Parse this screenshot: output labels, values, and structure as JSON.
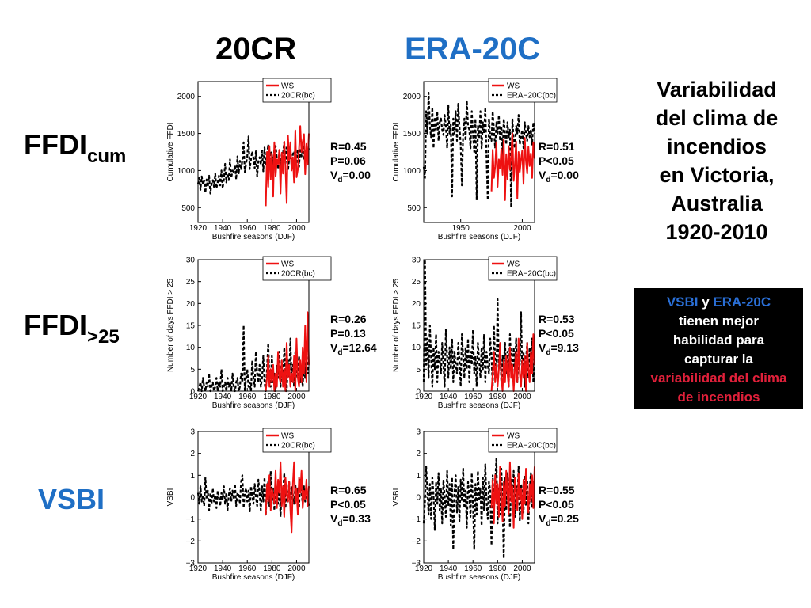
{
  "headers": {
    "col1": "20CR",
    "col1_color": "#000000",
    "col2": "ERA-20C",
    "col2_color": "#1f6fc5"
  },
  "rows": [
    {
      "main": "FFDI",
      "sub": "cum",
      "color": "#000000"
    },
    {
      "main": "FFDI",
      "sub": ">25",
      "color": "#000000"
    },
    {
      "main": "VSBI",
      "sub": "",
      "color": "#1f6fc5"
    }
  ],
  "side_title": {
    "lines": [
      "Variabilidad",
      "del clima de",
      "incendios",
      "en Victoria,",
      "Australia",
      "1920-2010"
    ]
  },
  "box": {
    "vsbi": "VSBI",
    "y": " y ",
    "era": "ERA-20C",
    "line2": "tienen mejor",
    "line3": "habilidad para",
    "line4": "capturar la",
    "red1": "variabilidad del clima",
    "red2": "de incendios"
  },
  "stats": [
    {
      "r": "R=0.45",
      "p": "P=0.06",
      "v_pre": "V",
      "v_sub": "d",
      "v_post": "=0.00"
    },
    {
      "r": "R=0.51",
      "p": "P<0.05",
      "v_pre": "V",
      "v_sub": "d",
      "v_post": "=0.00"
    },
    {
      "r": "R=0.26",
      "p": "P=0.13",
      "v_pre": "V",
      "v_sub": "d",
      "v_post": "=12.64"
    },
    {
      "r": "R=0.53",
      "p": "P<0.05",
      "v_pre": "V",
      "v_sub": "d",
      "v_post": "=9.13"
    },
    {
      "r": "R=0.65",
      "p": "P<0.05",
      "v_pre": "V",
      "v_sub": "d",
      "v_post": "=0.33"
    },
    {
      "r": "R=0.55",
      "p": "P<0.05",
      "v_pre": "V",
      "v_sub": "d",
      "v_post": "=0.25"
    }
  ],
  "colors": {
    "ws": "#ee1111",
    "reanalysis": "#000000"
  },
  "chart_data": [
    {
      "type": "line",
      "xlabel": "Bushfire seasons (DJF)",
      "ylabel": "Cumulative FFDI",
      "xlim": [
        1920,
        2010
      ],
      "ylim": [
        300,
        2200
      ],
      "xticks": [
        1920,
        1940,
        1960,
        1980,
        2000
      ],
      "yticks": [
        500,
        1000,
        1500,
        2000
      ],
      "legend": "top-right",
      "series": [
        {
          "name": "WS",
          "style": "solid",
          "x_start": 1975,
          "values": [
            520,
            1250,
            780,
            1330,
            880,
            1230,
            650,
            1380,
            920,
            1150,
            1090,
            1280,
            690,
            1240,
            960,
            1390,
            1050,
            560,
            1470,
            1130,
            1380,
            1000,
            1180,
            840,
            1540,
            910,
            1010,
            1300,
            1600,
            1250,
            1390,
            1490,
            950,
            1360,
            1080,
            1500
          ]
        },
        {
          "name": "20CR(bc)",
          "style": "dashed",
          "x_start": 1920,
          "values": [
            820,
            900,
            740,
            920,
            810,
            860,
            700,
            880,
            780,
            930,
            690,
            820,
            870,
            780,
            960,
            760,
            840,
            930,
            800,
            1000,
            760,
            880,
            1090,
            840,
            960,
            870,
            1150,
            900,
            1000,
            980,
            1070,
            880,
            1190,
            950,
            1130,
            1010,
            1140,
            1380,
            980,
            1090,
            1190,
            1460,
            1020,
            1150,
            1260,
            1170,
            1030,
            1260,
            920,
            1120,
            1180,
            1080,
            1270,
            990,
            1310,
            1060,
            1200,
            1350,
            1100,
            1260,
            1210,
            1040,
            1300,
            1330,
            1160,
            1020,
            1270,
            1060,
            1150,
            1230,
            1380,
            1100,
            1310,
            1000,
            1150,
            1280,
            1060,
            1220,
            1260,
            1170,
            1110,
            1290,
            1050,
            1300,
            1190,
            1350,
            1140,
            1280,
            1130,
            1240,
            1300
          ]
        }
      ]
    },
    {
      "type": "line",
      "xlabel": "Bushfire seasons (DJF)",
      "ylabel": "Cumulative FFDI",
      "xlim": [
        1920,
        2010
      ],
      "ylim": [
        300,
        2200
      ],
      "xticks": [
        1950,
        2000
      ],
      "yticks": [
        500,
        1000,
        1500,
        2000
      ],
      "legend": "top-right",
      "series": [
        {
          "name": "WS",
          "style": "solid",
          "x_start": 1975,
          "values": [
            720,
            1280,
            900,
            1050,
            1380,
            780,
            1150,
            1030,
            1290,
            940,
            1420,
            600,
            1220,
            880,
            1330,
            1010,
            1200,
            1500,
            860,
            1080,
            1390,
            620,
            1250,
            980,
            1150,
            1270,
            820,
            1440,
            1130,
            960,
            1320,
            1060,
            1230,
            900,
            1380,
            1160
          ]
        },
        {
          "name": "ERA−20C(bc)",
          "style": "dashed",
          "x_start": 1920,
          "values": [
            1050,
            900,
            1800,
            1500,
            2050,
            1600,
            1450,
            1850,
            1300,
            1720,
            1550,
            1800,
            1400,
            1650,
            1700,
            1550,
            1480,
            1750,
            1600,
            1300,
            1880,
            1500,
            1620,
            650,
            1700,
            1500,
            1800,
            1400,
            1900,
            1600,
            1350,
            800,
            1500,
            1700,
            1400,
            1950,
            1600,
            1550,
            1300,
            1800,
            1500,
            1250,
            1700,
            600,
            1600,
            1450,
            1800,
            1300,
            1650,
            1500,
            1850,
            1200,
            600,
            1700,
            1450,
            1400,
            1800,
            1550,
            1300,
            1650,
            1500,
            1750,
            1400,
            1600,
            1200,
            1700,
            1500,
            1350,
            1650,
            1450,
            1550,
            500,
            1700,
            1400,
            1300,
            1600,
            1500,
            1750,
            1350,
            1450,
            1550,
            1300,
            1650,
            1500,
            1400,
            1600,
            1450,
            1550,
            1350,
            1650,
            1500
          ]
        }
      ]
    },
    {
      "type": "line",
      "xlabel": "Bushfire seasons (DJF)",
      "ylabel": "Number of days FFDI > 25",
      "xlim": [
        1920,
        2010
      ],
      "ylim": [
        0,
        30
      ],
      "xticks": [
        1920,
        1940,
        1960,
        1980,
        2000
      ],
      "yticks": [
        0,
        5,
        10,
        15,
        20,
        25,
        30
      ],
      "legend": "top-right",
      "series": [
        {
          "name": "WS",
          "style": "solid",
          "x_start": 1975,
          "values": [
            0,
            3,
            8,
            1,
            5,
            2,
            6,
            0,
            4,
            1,
            9,
            3,
            2,
            7,
            1,
            5,
            0,
            11,
            3,
            6,
            1,
            4,
            2,
            8,
            0,
            12,
            3,
            1,
            7,
            2,
            10,
            4,
            15,
            2,
            18,
            6
          ]
        },
        {
          "name": "20CR(bc)",
          "style": "dashed",
          "x_start": 1920,
          "values": [
            0,
            1,
            2,
            0,
            3,
            1,
            0,
            2,
            1,
            4,
            0,
            1,
            2,
            0,
            1,
            3,
            0,
            2,
            1,
            5,
            0,
            1,
            2,
            0,
            3,
            1,
            2,
            0,
            4,
            1,
            0,
            2,
            3,
            0,
            1,
            4,
            2,
            15,
            0,
            3,
            5,
            1,
            2,
            0,
            7,
            3,
            1,
            9,
            4,
            2,
            6,
            1,
            3,
            8,
            2,
            0,
            5,
            11,
            3,
            1,
            8,
            2,
            4,
            0,
            6,
            3,
            9,
            1,
            5,
            2,
            10,
            4,
            0,
            7,
            3,
            12,
            2,
            6,
            1,
            9,
            4,
            3,
            8,
            2,
            5,
            1,
            7,
            3,
            11,
            4,
            6
          ]
        }
      ]
    },
    {
      "type": "line",
      "xlabel": "Bushfire seasons (DJF)",
      "ylabel": "Number of days FFDI > 25",
      "xlim": [
        1920,
        2010
      ],
      "ylim": [
        0,
        30
      ],
      "xticks": [
        1920,
        1940,
        1960,
        1980,
        2000
      ],
      "yticks": [
        0,
        5,
        10,
        15,
        20,
        25,
        30
      ],
      "legend": "top-right",
      "series": [
        {
          "name": "WS",
          "style": "solid",
          "x_start": 1975,
          "values": [
            0,
            4,
            9,
            2,
            6,
            1,
            5,
            11,
            3,
            0,
            7,
            2,
            8,
            4,
            1,
            10,
            3,
            6,
            0,
            5,
            9,
            2,
            12,
            4,
            1,
            7,
            3,
            8,
            0,
            11,
            5,
            2,
            9,
            4,
            13,
            6
          ]
        },
        {
          "name": "ERA−20C(bc)",
          "style": "dashed",
          "x_start": 1920,
          "values": [
            2,
            30,
            6,
            12,
            3,
            15,
            8,
            1,
            10,
            5,
            13,
            2,
            9,
            7,
            4,
            11,
            6,
            1,
            14,
            8,
            3,
            10,
            5,
            12,
            2,
            9,
            6,
            4,
            11,
            7,
            1,
            13,
            8,
            3,
            10,
            5,
            12,
            2,
            9,
            6,
            14,
            4,
            8,
            1,
            11,
            7,
            3,
            10,
            5,
            13,
            2,
            9,
            6,
            4,
            12,
            8,
            1,
            15,
            7,
            3,
            21,
            5,
            10,
            2,
            8,
            6,
            11,
            4,
            9,
            1,
            13,
            7,
            3,
            10,
            5,
            12,
            2,
            8,
            6,
            18,
            4,
            9,
            1,
            7,
            11,
            3,
            10,
            5,
            12,
            2,
            8
          ]
        }
      ]
    },
    {
      "type": "line",
      "xlabel": "Bushfire seasons (DJF)",
      "ylabel": "VSBI",
      "xlim": [
        1920,
        2010
      ],
      "ylim": [
        -3,
        3
      ],
      "xticks": [
        1920,
        1940,
        1960,
        1980,
        2000
      ],
      "yticks": [
        -3,
        -2,
        -1,
        0,
        1,
        2,
        3
      ],
      "legend": "top-right",
      "series": [
        {
          "name": "WS",
          "style": "solid",
          "x_start": 1975,
          "values": [
            -0.8,
            0.6,
            -0.2,
            1.0,
            -0.6,
            0.4,
            0.1,
            -0.3,
            1.2,
            -0.5,
            0.8,
            0.2,
            1.6,
            -0.4,
            0.5,
            -0.9,
            0.9,
            0.1,
            -0.2,
            0.7,
            -0.6,
            -1.6,
            0.6,
            1.6,
            -0.3,
            0.4,
            -0.8,
            0.9,
            0.2,
            1.2,
            -0.5,
            0.3,
            -0.1,
            0.8,
            -0.4,
            0.5
          ]
        },
        {
          "name": "20CR(bc)",
          "style": "dashed",
          "x_start": 1920,
          "values": [
            0.2,
            -0.3,
            0.5,
            -0.2,
            0.1,
            -0.4,
            0.9,
            -0.1,
            0.3,
            -0.6,
            0.2,
            -0.3,
            0.4,
            -0.2,
            0.1,
            -0.5,
            0.3,
            0.0,
            -0.4,
            0.2,
            -0.1,
            0.5,
            -0.3,
            0.2,
            -0.6,
            0.1,
            0.4,
            -0.2,
            0.3,
            -0.1,
            0.6,
            -0.4,
            0.2,
            0.1,
            -0.3,
            0.7,
            1.0,
            -0.5,
            0.2,
            0.4,
            -0.2,
            0.3,
            -0.7,
            0.5,
            0.1,
            -0.3,
            0.6,
            0.0,
            -0.4,
            0.8,
            0.2,
            -0.6,
            0.5,
            -0.2,
            0.9,
            -0.8,
            0.3,
            0.7,
            -0.4,
            1.2,
            -0.2,
            0.4,
            -0.6,
            0.8,
            0.1,
            -0.3,
            0.6,
            -0.9,
            0.4,
            0.2,
            1.1,
            -0.5,
            0.3,
            -0.2,
            0.7,
            -0.4,
            0.5,
            0.1,
            -0.3,
            0.6,
            -0.1,
            0.4,
            -0.5,
            0.8,
            0.2,
            -0.3,
            0.5,
            -0.2,
            0.3,
            0.1,
            -0.4
          ]
        }
      ]
    },
    {
      "type": "line",
      "xlabel": "Bushfire seasons (DJF)",
      "ylabel": "VSBI",
      "xlim": [
        1920,
        2010
      ],
      "ylim": [
        -3,
        3
      ],
      "xticks": [
        1920,
        1940,
        1960,
        1980,
        2000
      ],
      "yticks": [
        -3,
        -2,
        -1,
        0,
        1,
        2,
        3
      ],
      "legend": "top-right",
      "series": [
        {
          "name": "WS",
          "style": "solid",
          "x_start": 1975,
          "values": [
            -0.5,
            0.8,
            -1.2,
            1.0,
            -0.3,
            0.6,
            -0.9,
            1.4,
            0.2,
            -1.1,
            0.7,
            -0.4,
            1.2,
            0.1,
            -0.8,
            1.6,
            -0.2,
            0.5,
            -1.4,
            0.9,
            0.3,
            -0.6,
            1.1,
            -0.1,
            0.4,
            -1.0,
            0.8,
            -0.3,
            1.3,
            0.2,
            -0.7,
            0.6,
            -0.2,
            1.0,
            -0.5,
            1.4
          ]
        },
        {
          "name": "ERA−20C(bc)",
          "style": "dashed",
          "x_start": 1920,
          "values": [
            -1.2,
            -0.2,
            1.4,
            0.3,
            -0.8,
            0.6,
            -1.0,
            0.9,
            0.1,
            -1.5,
            0.7,
            -0.3,
            1.1,
            -0.6,
            0.4,
            -1.2,
            0.8,
            0.0,
            -0.9,
            1.2,
            -0.4,
            0.6,
            -1.3,
            0.9,
            -2.4,
            0.2,
            1.0,
            -0.7,
            0.5,
            -1.1,
            0.8,
            -0.2,
            1.3,
            -0.5,
            0.3,
            -1.4,
            0.7,
            0.1,
            -0.9,
            1.1,
            -0.3,
            -2.4,
            0.6,
            -0.8,
            1.2,
            -0.1,
            0.4,
            -1.3,
            0.9,
            -0.6,
            1.5,
            -0.2,
            -1.0,
            0.7,
            0.3,
            -2.2,
            1.0,
            -0.5,
            0.6,
            1.8,
            -1.2,
            0.4,
            -0.8,
            1.3,
            -0.3,
            -2.8,
            0.9,
            -0.6,
            1.1,
            0.2,
            -1.4,
            0.8,
            -0.3,
            1.2,
            -0.9,
            0.5,
            -0.1,
            1.4,
            -1.1,
            0.6,
            0.2,
            -0.7,
            1.0,
            -0.4,
            0.8,
            -1.2,
            0.3,
            1.1,
            -0.5,
            0.7,
            -0.2
          ]
        }
      ]
    }
  ]
}
